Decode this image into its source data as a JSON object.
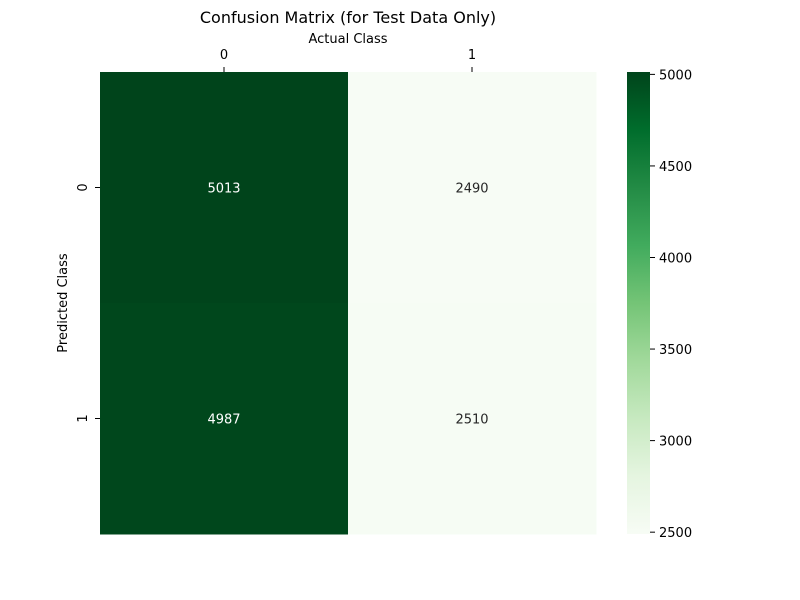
{
  "chart_data": {
    "type": "heatmap",
    "title": "Confusion Matrix (for Test Data Only)",
    "xlabel": "Actual Class",
    "ylabel": "Predicted Class",
    "x_categories": [
      "0",
      "1"
    ],
    "y_categories": [
      "0",
      "1"
    ],
    "values": [
      [
        5013,
        2490
      ],
      [
        4987,
        2510
      ]
    ],
    "colorbar": {
      "min": 2490,
      "max": 5013,
      "ticks": [
        5000,
        4500,
        4000,
        3500,
        3000,
        2500
      ],
      "colormap": "Greens",
      "low_color": "#f7fcf5",
      "high_color": "#00441b"
    },
    "x_axis_position": "top",
    "grid": false
  }
}
